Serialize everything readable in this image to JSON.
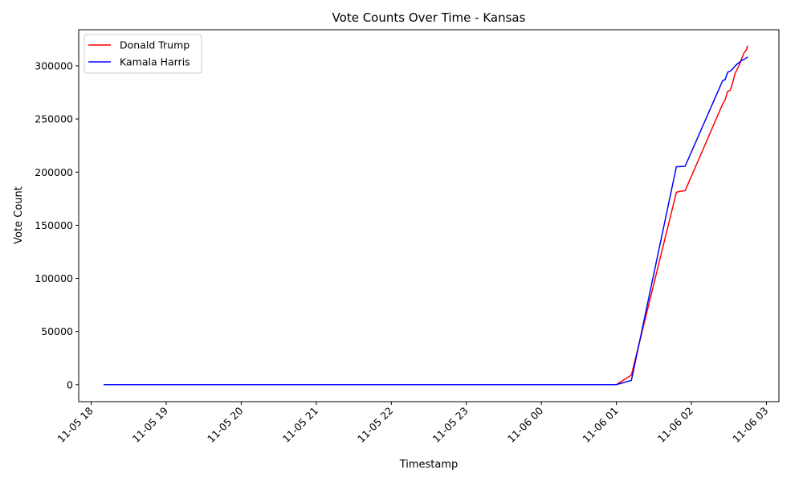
{
  "chart_data": {
    "type": "line",
    "title": "Vote Counts Over Time - Kansas",
    "xlabel": "Timestamp",
    "ylabel": "Vote Count",
    "x_tick_labels": [
      "11-05 18",
      "11-05 19",
      "11-05 20",
      "11-05 21",
      "11-05 22",
      "11-05 23",
      "11-06 00",
      "11-06 01",
      "11-06 02",
      "11-06 03"
    ],
    "y_tick_labels": [
      "0",
      "50000",
      "100000",
      "150000",
      "200000",
      "250000",
      "300000"
    ],
    "y_ticks": [
      0,
      50000,
      100000,
      150000,
      200000,
      250000,
      300000
    ],
    "xlim": [
      "2024-11-05 17:50",
      "2024-11-06 03:10"
    ],
    "ylim": [
      -16000,
      334000
    ],
    "grid": false,
    "legend_position": "top-left",
    "series": [
      {
        "name": "Donald Trump",
        "color": "#ff0000",
        "points": [
          [
            "2024-11-05 18:10",
            0
          ],
          [
            "2024-11-06 01:00",
            0
          ],
          [
            "2024-11-06 01:12",
            9000
          ],
          [
            "2024-11-06 01:48",
            181000
          ],
          [
            "2024-11-06 01:51",
            182000
          ],
          [
            "2024-11-06 01:55",
            182500
          ],
          [
            "2024-11-06 02:25",
            264000
          ],
          [
            "2024-11-06 02:27",
            268000
          ],
          [
            "2024-11-06 02:29",
            276000
          ],
          [
            "2024-11-06 02:31",
            277000
          ],
          [
            "2024-11-06 02:33",
            284000
          ],
          [
            "2024-11-06 02:35",
            293000
          ],
          [
            "2024-11-06 02:38",
            300000
          ],
          [
            "2024-11-06 02:40",
            306000
          ],
          [
            "2024-11-06 02:42",
            312000
          ],
          [
            "2024-11-06 02:44",
            315000
          ],
          [
            "2024-11-06 02:45",
            319000
          ]
        ]
      },
      {
        "name": "Kamala Harris",
        "color": "#0000ff",
        "points": [
          [
            "2024-11-05 18:10",
            0
          ],
          [
            "2024-11-06 01:00",
            0
          ],
          [
            "2024-11-06 01:12",
            4000
          ],
          [
            "2024-11-06 01:48",
            205000
          ],
          [
            "2024-11-06 01:55",
            205500
          ],
          [
            "2024-11-06 02:25",
            286000
          ],
          [
            "2024-11-06 02:27",
            287000
          ],
          [
            "2024-11-06 02:29",
            294000
          ],
          [
            "2024-11-06 02:31",
            295000
          ],
          [
            "2024-11-06 02:33",
            297000
          ],
          [
            "2024-11-06 02:35",
            300000
          ],
          [
            "2024-11-06 02:38",
            303000
          ],
          [
            "2024-11-06 02:40",
            305000
          ],
          [
            "2024-11-06 02:42",
            306000
          ],
          [
            "2024-11-06 02:44",
            307500
          ],
          [
            "2024-11-06 02:45",
            308500
          ]
        ]
      }
    ]
  }
}
